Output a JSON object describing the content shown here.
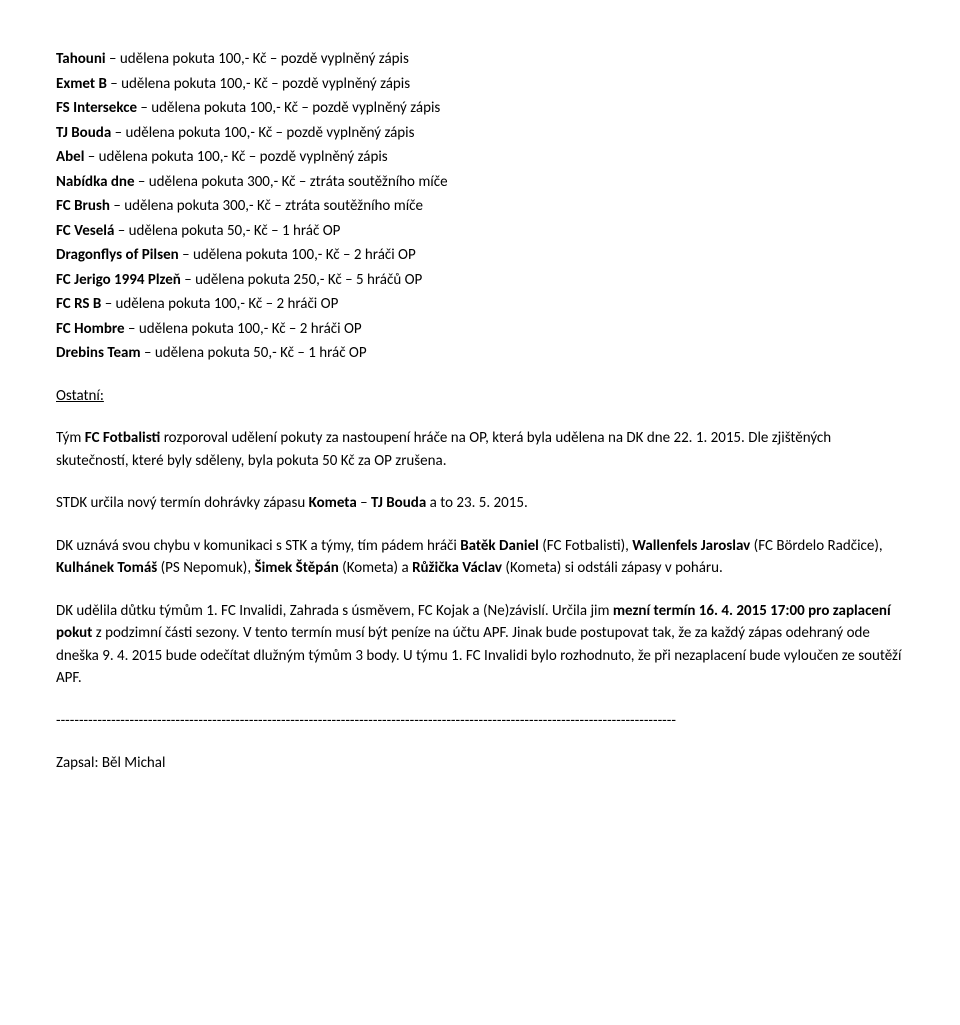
{
  "penalties": [
    {
      "team": "Tahouni",
      "text": " – udělena pokuta 100,- Kč – pozdě vyplněný zápis"
    },
    {
      "team": "Exmet B",
      "text": " – udělena pokuta 100,- Kč – pozdě vyplněný zápis"
    },
    {
      "team": "FS Intersekce",
      "text": " – udělena pokuta 100,- Kč – pozdě vyplněný zápis"
    },
    {
      "team": "TJ Bouda",
      "text": " – udělena pokuta 100,- Kč – pozdě vyplněný zápis"
    },
    {
      "team": "Abel",
      "text": " – udělena pokuta 100,- Kč – pozdě vyplněný zápis"
    },
    {
      "team": "Nabídka dne",
      "text": " – udělena pokuta 300,- Kč – ztráta soutěžního míče"
    },
    {
      "team": "FC Brush",
      "text": " – udělena pokuta 300,- Kč – ztráta soutěžního míče"
    },
    {
      "team": "FC Veselá",
      "text": " – udělena pokuta 50,- Kč – 1 hráč OP"
    },
    {
      "team": "Dragonflys of Pilsen",
      "text": " – udělena pokuta 100,- Kč – 2 hráči OP"
    },
    {
      "team": "FC Jerigo 1994 Plzeň",
      "text": " – udělena pokuta 250,- Kč – 5 hráčů OP"
    },
    {
      "team": "FC RS B",
      "text": " – udělena pokuta 100,- Kč – 2 hráči OP"
    },
    {
      "team": "FC Hombre",
      "text": " – udělena pokuta 100,- Kč – 2 hráči OP"
    },
    {
      "team": "Drebins Team",
      "text": " – udělena pokuta 50,- Kč – 1 hráč OP"
    }
  ],
  "other_heading": "Ostatní:",
  "p1": {
    "pre": "Tým ",
    "bold": "FC Fotbalisti",
    "post": " rozporoval udělení pokuty za nastoupení hráče na OP, která byla udělena na DK dne 22. 1. 2015. Dle zjištěných skutečností, které byly sděleny, byla pokuta 50 Kč za OP zrušena."
  },
  "p2": {
    "pre": "STDK určila nový termín dohrávky zápasu ",
    "b1": "Kometa",
    "mid": " – ",
    "b2": "TJ Bouda",
    "post": " a to 23. 5. 2015."
  },
  "p3": {
    "pre": "DK uznává svou chybu v komunikaci s STK a týmy, tím pádem hráči ",
    "b1": "Batěk Daniel",
    "t1": " (FC Fotbalisti), ",
    "b2": "Wallenfels Jaroslav",
    "t2": " (FC Bördelo Radčice), ",
    "b3": "Kulhánek Tomáš",
    "t3": " (PS Nepomuk), ",
    "b4": "Šimek Štěpán",
    "t4": " (Kometa) a ",
    "b5": "Růžička Václav",
    "t5": " (Kometa) si odstáli zápasy v poháru."
  },
  "p4": {
    "pre": "DK udělila důtku týmům 1. FC Invalidi, Zahrada s úsměvem, FC Kojak a (Ne)závislí. Určila jim ",
    "b1": "mezní termín 16. 4. 2015 17:00 pro zaplacení pokut",
    "post": " z podzimní části sezony. V tento termín musí být peníze na účtu APF. Jinak bude postupovat tak, že za každý zápas odehraný ode dneška 9. 4. 2015 bude odečítat dlužným týmům 3 body. U týmu 1. FC Invalidi bylo rozhodnuto, že při nezaplacení bude vyloučen ze soutěží APF."
  },
  "dashes": "---------------------------------------------------------------------------------------------------------------------------------------",
  "signed": "Zapsal: Běl Michal"
}
